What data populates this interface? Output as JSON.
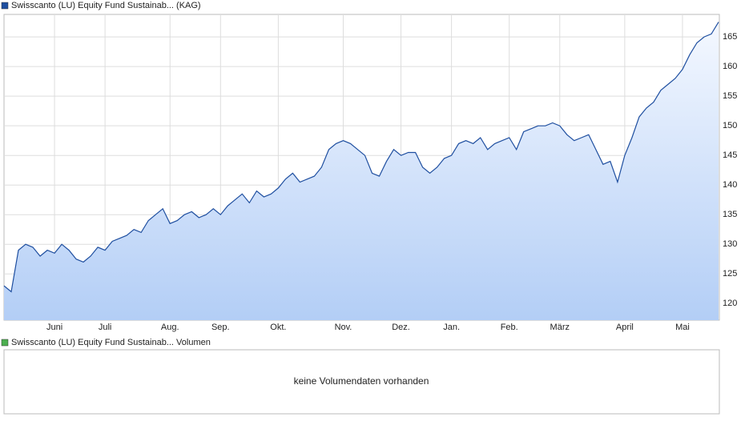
{
  "chart_data": {
    "type": "line",
    "series": [
      {
        "name": "Swisscanto (LU) Equity Fund Sustainab... (KAG)",
        "color": "#1f4fa0",
        "values": [
          123,
          122,
          129,
          130,
          129.5,
          128,
          129,
          128.5,
          130,
          129,
          127.5,
          127,
          128,
          129.5,
          129,
          130.5,
          131,
          131.5,
          132.5,
          132,
          134,
          135,
          136,
          133.5,
          134,
          135,
          135.5,
          134.5,
          135,
          136,
          135,
          136.5,
          137.5,
          138.5,
          137,
          139,
          138,
          138.5,
          139.5,
          141,
          142,
          140.5,
          141,
          141.5,
          143,
          146,
          147,
          147.5,
          147,
          146,
          145,
          142,
          141.5,
          144,
          146,
          145,
          145.5,
          145.5,
          143,
          142,
          143,
          144.5,
          145,
          147,
          147.5,
          147,
          148,
          146,
          147,
          147.5,
          148,
          146,
          149,
          149.5,
          150,
          150,
          150.5,
          150,
          148.5,
          147.5,
          148,
          148.5,
          146,
          143.5,
          144,
          140.5,
          145,
          148,
          151.5,
          153,
          154,
          156,
          157,
          158,
          159.5,
          162,
          164,
          165,
          165.5,
          167.5
        ]
      }
    ],
    "categories": [
      null,
      null,
      null,
      null,
      null,
      null,
      null,
      "Juni",
      null,
      null,
      null,
      null,
      null,
      null,
      "Juli",
      null,
      null,
      null,
      null,
      null,
      null,
      null,
      null,
      "Aug.",
      null,
      null,
      null,
      null,
      null,
      null,
      "Sep.",
      null,
      null,
      null,
      null,
      null,
      null,
      null,
      "Okt.",
      null,
      null,
      null,
      null,
      null,
      null,
      null,
      null,
      "Nov.",
      null,
      null,
      null,
      null,
      null,
      null,
      null,
      "Dez.",
      null,
      null,
      null,
      null,
      null,
      null,
      "Jan.",
      null,
      null,
      null,
      null,
      null,
      null,
      null,
      "Feb.",
      null,
      null,
      null,
      null,
      null,
      null,
      "März",
      null,
      null,
      null,
      null,
      null,
      null,
      null,
      null,
      "April",
      null,
      null,
      null,
      null,
      null,
      null,
      null,
      "Mai",
      null,
      null,
      null,
      null,
      null
    ],
    "ylim": [
      117.2,
      168.8
    ],
    "yticks": [
      120,
      125,
      130,
      135,
      140,
      145,
      150,
      155,
      160,
      165
    ],
    "grid": true
  },
  "volume_panel": {
    "legend": "Swisscanto (LU) Equity Fund Sustainab... Volumen",
    "color": "#4caf50",
    "message": "keine Volumendaten vorhanden"
  }
}
